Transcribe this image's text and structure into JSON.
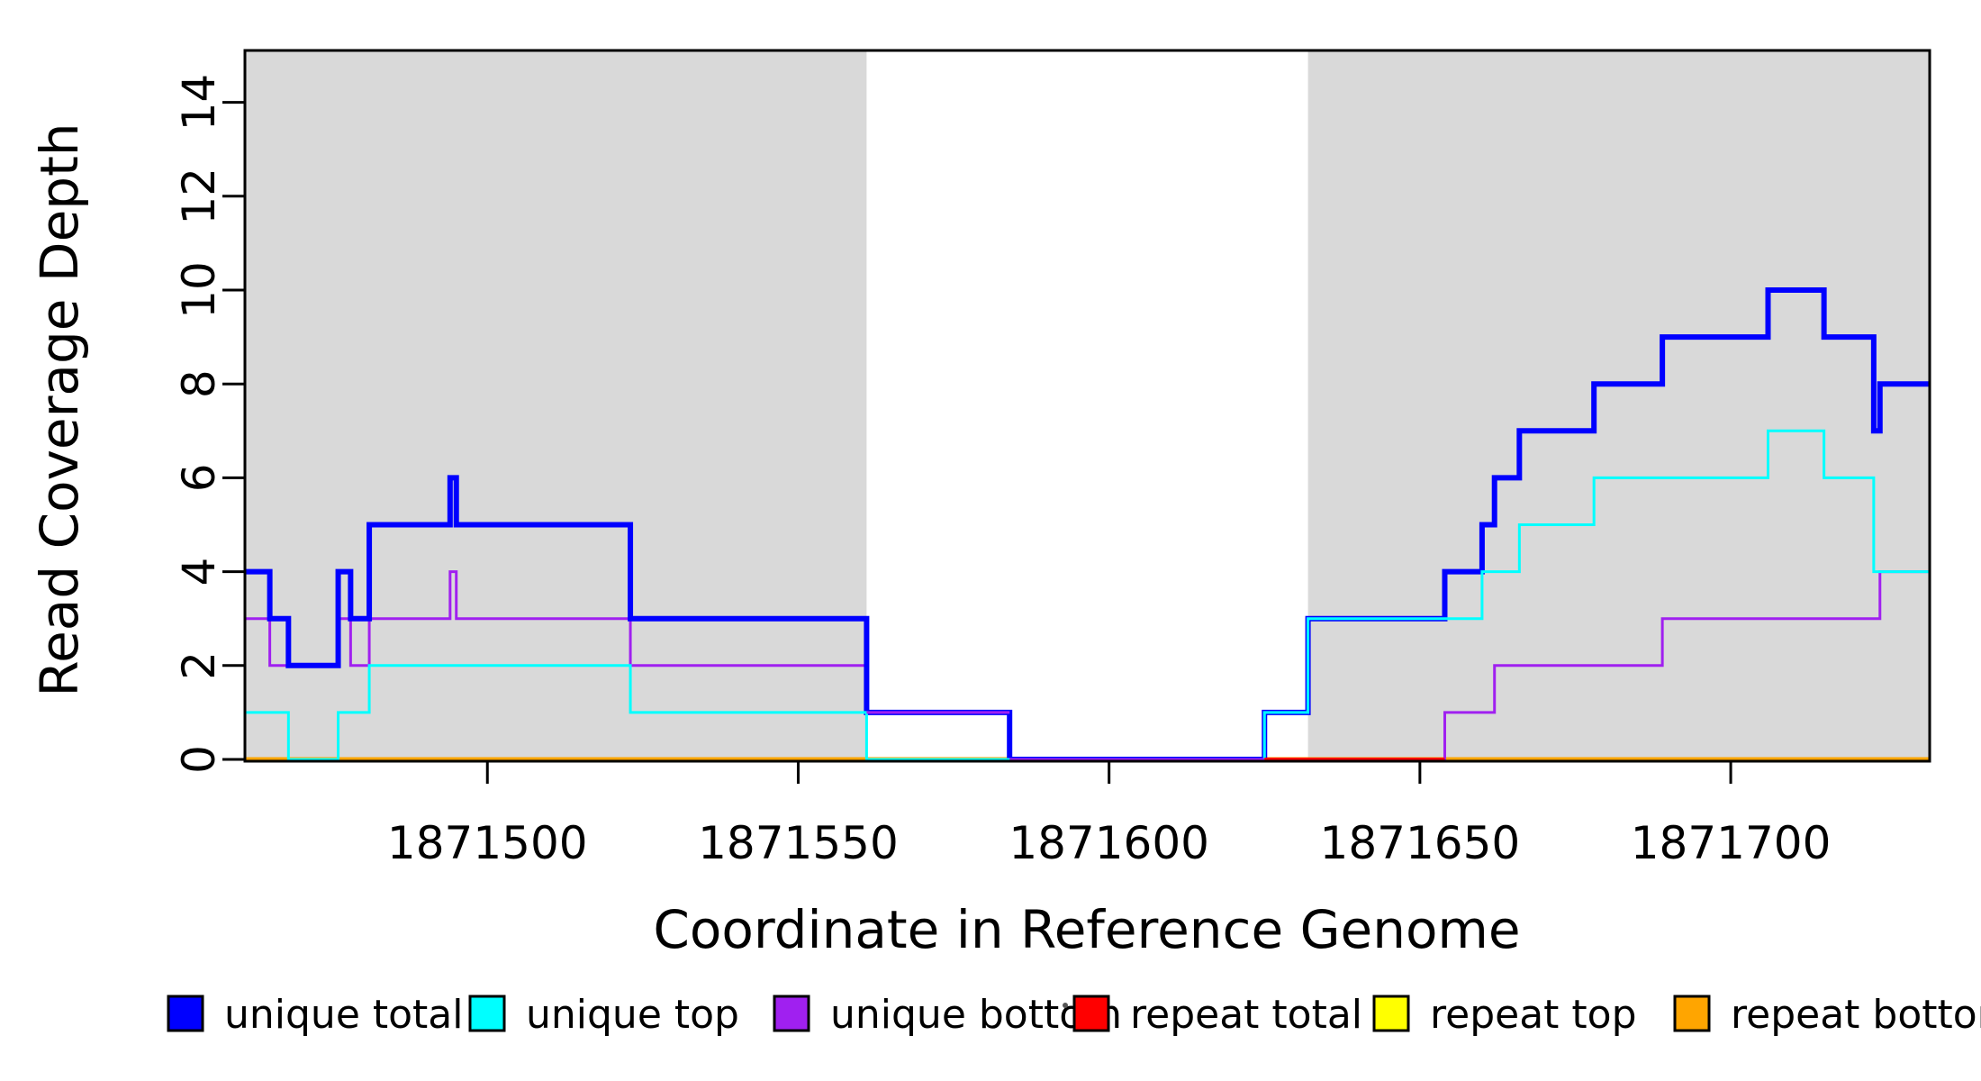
{
  "chart_data": {
    "type": "line",
    "step": true,
    "title": "",
    "xlabel": "Coordinate in Reference Genome",
    "ylabel": "Read Coverage Depth",
    "xlim": [
      1871461,
      1871732
    ],
    "ylim": [
      0,
      15.1
    ],
    "xticks": [
      1871500,
      1871550,
      1871600,
      1871650,
      1871700
    ],
    "yticks": [
      0,
      2,
      4,
      6,
      8,
      10,
      12,
      14
    ],
    "grid": false,
    "plot_background": "#ffffff",
    "shaded_color": "#d9d9d9",
    "shaded_regions": [
      [
        1871461,
        1871561
      ],
      [
        1871632,
        1871732
      ]
    ],
    "series": [
      {
        "name": "unique total",
        "color": "#0000ff",
        "lwd": 6,
        "points": [
          [
            1871461,
            4
          ],
          [
            1871465,
            3
          ],
          [
            1871468,
            2
          ],
          [
            1871476,
            4
          ],
          [
            1871478,
            3
          ],
          [
            1871481,
            5
          ],
          [
            1871494,
            6
          ],
          [
            1871495,
            5
          ],
          [
            1871523,
            3
          ],
          [
            1871561,
            1
          ],
          [
            1871584,
            0
          ],
          [
            1871625,
            1
          ],
          [
            1871632,
            3
          ],
          [
            1871654,
            4
          ],
          [
            1871660,
            5
          ],
          [
            1871662,
            6
          ],
          [
            1871666,
            7
          ],
          [
            1871678,
            8
          ],
          [
            1871689,
            9
          ],
          [
            1871706,
            10
          ],
          [
            1871715,
            9
          ],
          [
            1871723,
            7
          ],
          [
            1871724,
            8
          ]
        ]
      },
      {
        "name": "unique top",
        "color": "#00ffff",
        "lwd": 3,
        "points": [
          [
            1871461,
            1
          ],
          [
            1871468,
            0
          ],
          [
            1871476,
            1
          ],
          [
            1871481,
            2
          ],
          [
            1871523,
            1
          ],
          [
            1871561,
            0
          ],
          [
            1871625,
            1
          ],
          [
            1871632,
            3
          ],
          [
            1871660,
            4
          ],
          [
            1871666,
            5
          ],
          [
            1871678,
            6
          ],
          [
            1871706,
            7
          ],
          [
            1871715,
            6
          ],
          [
            1871723,
            4
          ]
        ]
      },
      {
        "name": "unique bottom",
        "color": "#a020f0",
        "lwd": 3,
        "points": [
          [
            1871461,
            3
          ],
          [
            1871465,
            2
          ],
          [
            1871476,
            3
          ],
          [
            1871478,
            2
          ],
          [
            1871481,
            3
          ],
          [
            1871494,
            4
          ],
          [
            1871495,
            3
          ],
          [
            1871523,
            2
          ],
          [
            1871561,
            1
          ],
          [
            1871584,
            0
          ],
          [
            1871654,
            1
          ],
          [
            1871662,
            2
          ],
          [
            1871689,
            3
          ],
          [
            1871724,
            4
          ]
        ]
      },
      {
        "name": "repeat total",
        "color": "#ff0000",
        "lwd": 5,
        "points": [
          [
            1871461,
            0
          ]
        ]
      },
      {
        "name": "repeat top",
        "color": "#ffff00",
        "lwd": 5,
        "points": [
          [
            1871461,
            0
          ]
        ]
      },
      {
        "name": "repeat bottom",
        "color": "#ffa500",
        "lwd": 5,
        "points": [
          [
            1871461,
            0
          ]
        ]
      }
    ],
    "draw_order": [
      "repeat total",
      "repeat top",
      "repeat bottom",
      "unique bottom",
      "unique total",
      "unique top"
    ],
    "baseline_overlaps": [
      {
        "color": "#a020f0",
        "value": 1,
        "from": 1871561,
        "to": 1871584,
        "lwd": 3
      },
      {
        "color": "#a020f0",
        "value": 0,
        "from": 1871584,
        "to": 1871625,
        "lwd": 3
      },
      {
        "color": "#ff0000",
        "value": 0,
        "from": 1871625,
        "to": 1871654,
        "lwd": 4
      }
    ],
    "legend": {
      "position": "bottom",
      "items": [
        {
          "label": "unique total",
          "color": "#0000ff"
        },
        {
          "label": "unique top",
          "color": "#00ffff"
        },
        {
          "label": "unique bottom",
          "color": "#a020f0"
        },
        {
          "label": "repeat total",
          "color": "#ff0000"
        },
        {
          "label": "repeat top",
          "color": "#ffff00"
        },
        {
          "label": "repeat bottom",
          "color": "#ffa500"
        }
      ]
    }
  }
}
